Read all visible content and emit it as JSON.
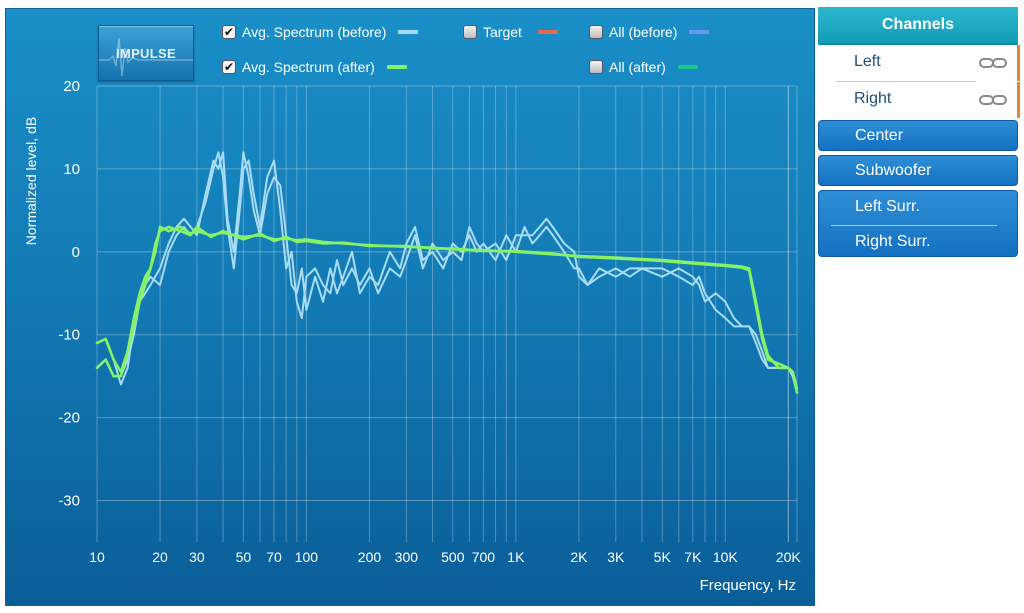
{
  "impulse_button": {
    "label": "IMPULSE"
  },
  "legend": [
    {
      "key": "avg_before",
      "label": "Avg. Spectrum (before)",
      "checked": true,
      "color": "#a8dcf4"
    },
    {
      "key": "target",
      "label": "Target",
      "checked": false,
      "color": "#e46a4c"
    },
    {
      "key": "all_before",
      "label": "All (before)",
      "checked": false,
      "color": "#6f93f2"
    },
    {
      "key": "avg_after",
      "label": "Avg. Spectrum (after)",
      "checked": true,
      "color": "#86f266"
    },
    {
      "key": "all_after",
      "label": "All (after)",
      "checked": false,
      "color": "#1dc58c"
    }
  ],
  "channels": {
    "header": "Channels",
    "selected": [
      "Left",
      "Right"
    ],
    "buttons": [
      "Center",
      "Subwoofer"
    ],
    "group": [
      "Left Surr.",
      "Right Surr."
    ]
  },
  "chart_data": {
    "type": "line",
    "title": "",
    "xlabel": "Frequency, Hz",
    "ylabel": "Normalized level, dB",
    "xscale": "log",
    "xlim": [
      10,
      22000
    ],
    "ylim": [
      -35,
      20
    ],
    "grid": true,
    "x_ticks": [
      {
        "v": 10,
        "label": "10"
      },
      {
        "v": 20,
        "label": "20"
      },
      {
        "v": 30,
        "label": "30"
      },
      {
        "v": 50,
        "label": "50"
      },
      {
        "v": 70,
        "label": "70"
      },
      {
        "v": 100,
        "label": "100"
      },
      {
        "v": 200,
        "label": "200"
      },
      {
        "v": 300,
        "label": "300"
      },
      {
        "v": 500,
        "label": "500"
      },
      {
        "v": 700,
        "label": "700"
      },
      {
        "v": 1000,
        "label": "1K"
      },
      {
        "v": 2000,
        "label": "2K"
      },
      {
        "v": 3000,
        "label": "3K"
      },
      {
        "v": 5000,
        "label": "5K"
      },
      {
        "v": 7000,
        "label": "7K"
      },
      {
        "v": 10000,
        "label": "10K"
      },
      {
        "v": 20000,
        "label": "20K"
      }
    ],
    "y_ticks": [
      {
        "v": 20,
        "label": "20"
      },
      {
        "v": 10,
        "label": "10"
      },
      {
        "v": 0,
        "label": "0"
      },
      {
        "v": -10,
        "label": "-10"
      },
      {
        "v": -20,
        "label": "-20"
      },
      {
        "v": -30,
        "label": "-30"
      }
    ],
    "series": [
      {
        "name": "Avg. Spectrum (before) L",
        "color": "#a8dcf4",
        "x": [
          10,
          11,
          12,
          13,
          14,
          15,
          16,
          18,
          20,
          22,
          24,
          26,
          28,
          30,
          33,
          36,
          38,
          40,
          42,
          45,
          48,
          50,
          53,
          56,
          60,
          65,
          70,
          75,
          80,
          85,
          90,
          95,
          100,
          110,
          120,
          130,
          140,
          150,
          165,
          180,
          200,
          220,
          250,
          280,
          300,
          330,
          360,
          400,
          450,
          500,
          550,
          600,
          650,
          700,
          800,
          900,
          1000,
          1100,
          1200,
          1300,
          1400,
          1500,
          1700,
          1900,
          2000,
          2200,
          2500,
          3000,
          3500,
          4000,
          5000,
          6000,
          7000,
          7500,
          8000,
          9000,
          10000,
          11000,
          12000,
          13000,
          14000,
          15000,
          16000,
          18000,
          20000,
          21000,
          22000
        ],
        "y": [
          -11,
          -10.5,
          -13,
          -16,
          -14,
          -9,
          -5,
          -3,
          -4,
          0,
          2,
          3,
          2,
          3,
          6,
          10,
          12,
          9,
          3,
          -2,
          5,
          10,
          11,
          7,
          3,
          9,
          11,
          5,
          -2,
          0,
          -6,
          -8,
          -3,
          -2,
          -4,
          -5,
          -1,
          -4,
          -2,
          -4,
          -2,
          -5,
          -2,
          -3,
          -1,
          2,
          -2,
          1,
          -1,
          0,
          -1,
          3,
          1,
          0,
          1,
          -1,
          2,
          2,
          2,
          3,
          4,
          3,
          1,
          0,
          -3,
          -4,
          -2,
          -3,
          -2,
          -2,
          -3,
          -2,
          -3,
          -4,
          -6,
          -5,
          -6,
          -8,
          -9,
          -9,
          -10,
          -12,
          -14,
          -14,
          -14,
          -15,
          -17
        ]
      },
      {
        "name": "Avg. Spectrum (before) R",
        "color": "#a8dcf4",
        "x": [
          10,
          11,
          12,
          13,
          14,
          15,
          16,
          18,
          20,
          22,
          24,
          26,
          28,
          30,
          33,
          36,
          38,
          40,
          42,
          45,
          48,
          50,
          53,
          56,
          60,
          65,
          70,
          75,
          80,
          85,
          90,
          95,
          100,
          110,
          120,
          130,
          140,
          150,
          165,
          180,
          200,
          220,
          250,
          280,
          300,
          330,
          360,
          400,
          450,
          500,
          550,
          600,
          650,
          700,
          800,
          900,
          1000,
          1100,
          1200,
          1300,
          1400,
          1500,
          1700,
          1900,
          2000,
          2200,
          2500,
          3000,
          3500,
          4000,
          5000,
          6000,
          7000,
          7500,
          8000,
          9000,
          10000,
          11000,
          12000,
          13000,
          14000,
          15000,
          16000,
          18000,
          20000,
          21000,
          22000
        ],
        "y": [
          -14,
          -13,
          -15,
          -15,
          -13,
          -10,
          -6,
          -4,
          -2,
          1,
          3,
          4,
          3,
          2,
          7,
          11,
          10,
          12,
          4,
          0,
          7,
          12,
          9,
          5,
          2,
          7,
          9,
          8,
          2,
          -4,
          -5,
          -2,
          -7,
          -3,
          -6,
          -2,
          -5,
          -3,
          0,
          -5,
          -3,
          -4,
          0,
          -2,
          1,
          3,
          -1,
          0,
          -2,
          1,
          0,
          2,
          0,
          1,
          -1,
          2,
          0,
          3,
          1,
          2,
          3,
          2,
          0,
          -2,
          -2,
          -4,
          -3,
          -2,
          -3,
          -2,
          -2,
          -3,
          -4,
          -3,
          -5,
          -7,
          -8,
          -9,
          -9,
          -9,
          -11,
          -13,
          -14,
          -14,
          -14,
          -15,
          -17
        ]
      },
      {
        "name": "Avg. Spectrum (after) L",
        "color": "#86f266",
        "x": [
          10,
          11,
          12,
          13,
          14,
          15,
          16,
          17,
          18,
          19,
          20,
          22,
          25,
          28,
          30,
          35,
          40,
          50,
          60,
          70,
          80,
          90,
          100,
          120,
          150,
          200,
          300,
          400,
          500,
          700,
          1000,
          1500,
          2000,
          3000,
          5000,
          7000,
          10000,
          12000,
          13000,
          14000,
          15000,
          16000,
          18000,
          20000,
          21000,
          22000
        ],
        "y": [
          -11,
          -10.5,
          -13,
          -14.5,
          -12,
          -8,
          -5,
          -3,
          -2,
          0,
          3,
          2.5,
          3,
          2.2,
          2.5,
          2,
          2.3,
          1.8,
          2,
          1.5,
          1.6,
          1.4,
          1.5,
          1.2,
          1,
          0.8,
          0.6,
          0.5,
          0.3,
          0.2,
          0,
          -0.3,
          -0.5,
          -0.7,
          -1,
          -1.3,
          -1.6,
          -1.8,
          -2,
          -6,
          -10,
          -12.5,
          -14,
          -14,
          -14.5,
          -17
        ]
      },
      {
        "name": "Avg. Spectrum (after) R",
        "color": "#86f266",
        "x": [
          10,
          11,
          12,
          13,
          14,
          15,
          16,
          17,
          18,
          19,
          20,
          22,
          25,
          28,
          30,
          35,
          40,
          50,
          60,
          70,
          80,
          90,
          100,
          120,
          150,
          200,
          300,
          400,
          500,
          700,
          1000,
          1500,
          2000,
          3000,
          5000,
          7000,
          10000,
          12000,
          13000,
          14000,
          15000,
          16000,
          18000,
          20000,
          21000,
          22000
        ],
        "y": [
          -14,
          -13,
          -15,
          -15,
          -12,
          -9,
          -6,
          -4,
          -2,
          1,
          2.5,
          3,
          2.5,
          2,
          3,
          1.8,
          2.5,
          1.5,
          2.2,
          1.3,
          1.8,
          1.2,
          1.3,
          1,
          1.1,
          0.7,
          0.7,
          0.4,
          0.4,
          0.1,
          0.1,
          -0.2,
          -0.6,
          -0.8,
          -1.1,
          -1.4,
          -1.7,
          -1.9,
          -2.2,
          -6.5,
          -10.5,
          -13,
          -13.5,
          -14,
          -14.5,
          -16.5
        ]
      }
    ]
  }
}
